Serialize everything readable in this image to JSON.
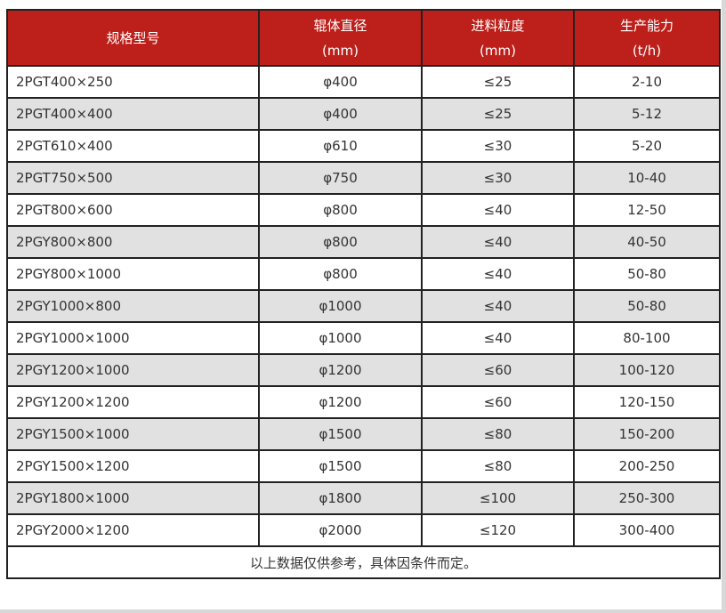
{
  "chart_data": {
    "type": "table",
    "title": "",
    "header": [
      {
        "label": "规格型号",
        "unit": ""
      },
      {
        "label": "辊体直径",
        "unit": "(mm)"
      },
      {
        "label": "进料粒度",
        "unit": "(mm)"
      },
      {
        "label": "生产能力",
        "unit": "(t/h)"
      }
    ],
    "rows": [
      [
        "2PGT400×250",
        "φ400",
        "≤25",
        "2-10"
      ],
      [
        "2PGT400×400",
        "φ400",
        "≤25",
        "5-12"
      ],
      [
        "2PGT610×400",
        "φ610",
        "≤30",
        "5-20"
      ],
      [
        "2PGT750×500",
        "φ750",
        "≤30",
        "10-40"
      ],
      [
        "2PGT800×600",
        "φ800",
        "≤40",
        "12-50"
      ],
      [
        "2PGY800×800",
        "φ800",
        "≤40",
        "40-50"
      ],
      [
        "2PGY800×1000",
        "φ800",
        "≤40",
        "50-80"
      ],
      [
        "2PGY1000×800",
        "φ1000",
        "≤40",
        "50-80"
      ],
      [
        "2PGY1000×1000",
        "φ1000",
        "≤40",
        "80-100"
      ],
      [
        "2PGY1200×1000",
        "φ1200",
        "≤60",
        "100-120"
      ],
      [
        "2PGY1200×1200",
        "φ1200",
        "≤60",
        "120-150"
      ],
      [
        "2PGY1500×1000",
        "φ1500",
        "≤80",
        "150-200"
      ],
      [
        "2PGY1500×1200",
        "φ1500",
        "≤80",
        "200-250"
      ],
      [
        "2PGY1800×1000",
        "φ1800",
        "≤100",
        "250-300"
      ],
      [
        "2PGY2000×1200",
        "φ2000",
        "≤120",
        "300-400"
      ]
    ],
    "footer_note": "以上数据仅供参考，具体因条件而定。"
  },
  "colors": {
    "header_bg": "#bd201a",
    "header_text": "#ffffff",
    "row_bg": "#ffffff",
    "row_alt_bg": "#e1e1e1",
    "border": "#212121",
    "body_text": "#333333",
    "edge_shadow": "#d8d8d8"
  }
}
